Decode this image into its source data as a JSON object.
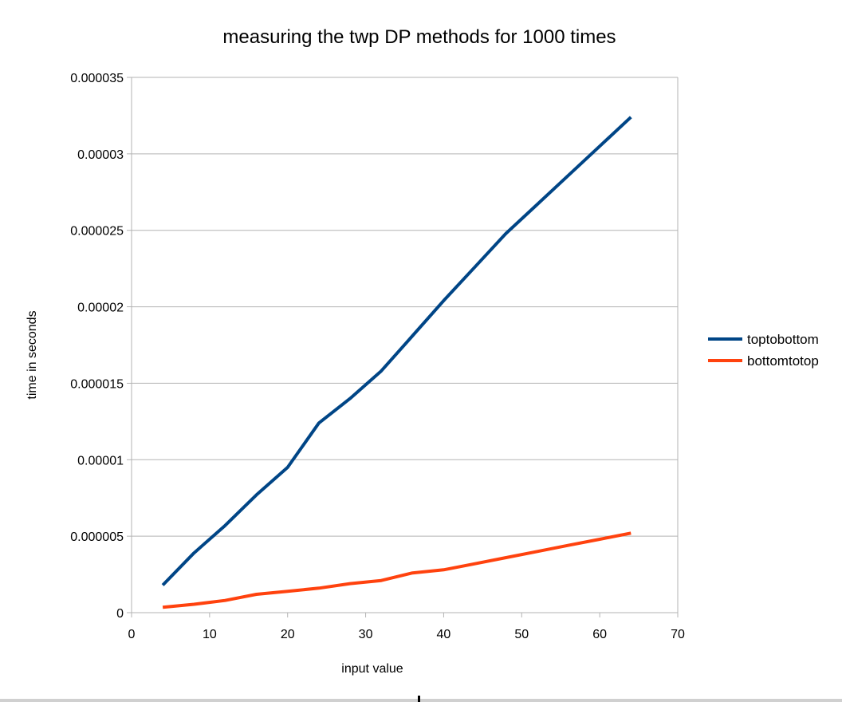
{
  "colors": {
    "toptobottom": "#004586",
    "bottomtotop": "#ff420e",
    "grid": "#b3b3b3",
    "axis": "#b3b3b3"
  },
  "chart_data": {
    "type": "line",
    "title": "measuring the twp DP methods for 1000 times",
    "xlabel": "input value",
    "ylabel": "time in seconds",
    "xlim": [
      0,
      70
    ],
    "ylim": [
      0,
      3.5e-05
    ],
    "x_ticks": [
      0,
      10,
      20,
      30,
      40,
      50,
      60,
      70
    ],
    "x_tick_labels": [
      "0",
      "10",
      "20",
      "30",
      "40",
      "50",
      "60",
      "70"
    ],
    "y_ticks": [
      0,
      5e-06,
      1e-05,
      1.5e-05,
      2e-05,
      2.5e-05,
      3e-05,
      3.5e-05
    ],
    "y_tick_labels": [
      "0",
      "0.000005",
      "0.00001",
      "0.000015",
      "0.00002",
      "0.000025",
      "0.00003",
      "0.000035"
    ],
    "grid": true,
    "legend_position": "right",
    "series": [
      {
        "name": "toptobottom",
        "x": [
          4,
          8,
          12,
          16,
          20,
          24,
          28,
          32,
          36,
          40,
          44,
          48,
          52,
          56,
          60,
          64
        ],
        "values": [
          1.8e-06,
          3.9e-06,
          5.7e-06,
          7.7e-06,
          9.5e-06,
          1.24e-05,
          1.4e-05,
          1.58e-05,
          1.81e-05,
          2.04e-05,
          2.26e-05,
          2.48e-05,
          2.67e-05,
          2.86e-05,
          3.05e-05,
          3.24e-05
        ]
      },
      {
        "name": "bottomtotop",
        "x": [
          4,
          8,
          12,
          16,
          20,
          24,
          28,
          32,
          36,
          40,
          44,
          48,
          52,
          56,
          60,
          64
        ],
        "values": [
          3.5e-07,
          5.5e-07,
          8e-07,
          1.2e-06,
          1.4e-06,
          1.6e-06,
          1.9e-06,
          2.1e-06,
          2.6e-06,
          2.8e-06,
          3.2e-06,
          3.6e-06,
          4e-06,
          4.4e-06,
          4.8e-06,
          5.2e-06
        ]
      }
    ]
  }
}
